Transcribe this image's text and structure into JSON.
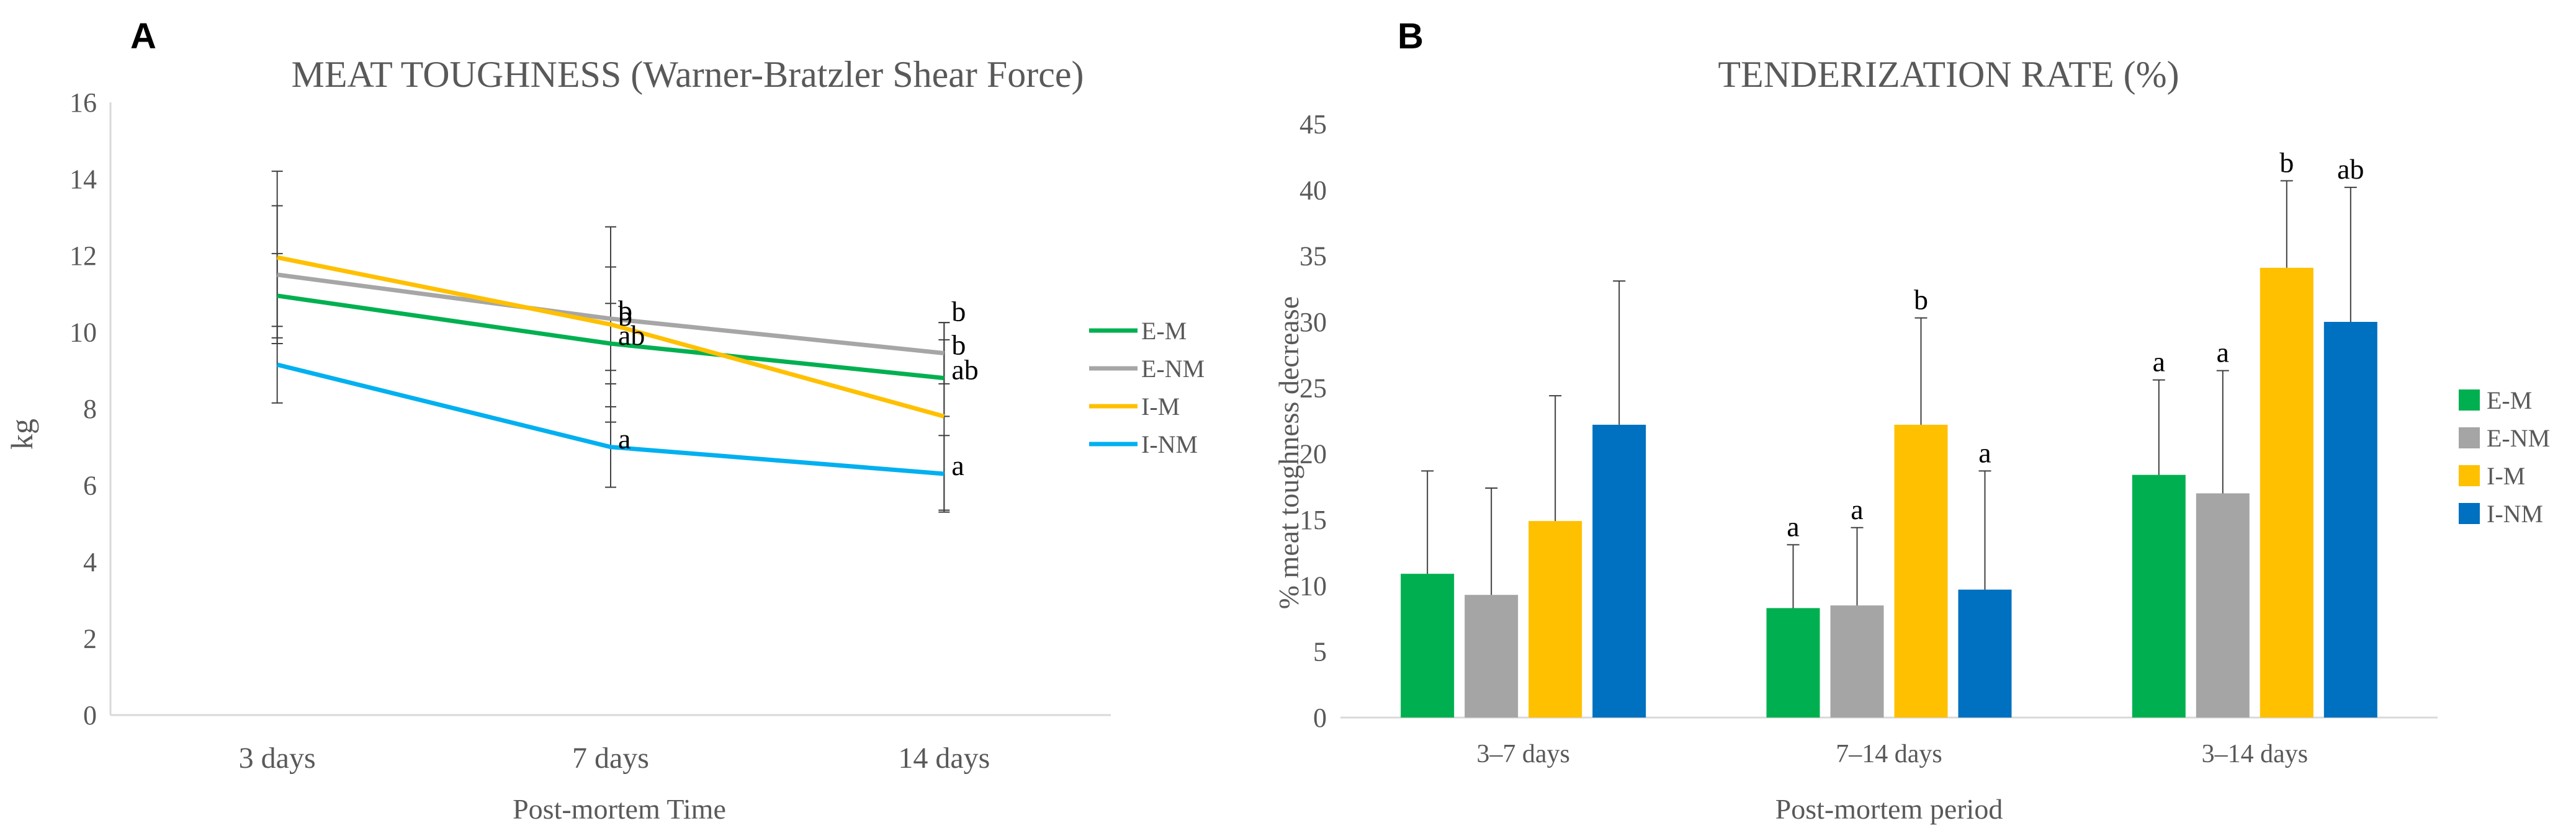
{
  "panels": [
    {
      "letter": "A"
    },
    {
      "letter": "B"
    }
  ],
  "chart_data": [
    {
      "type": "line",
      "title": "MEAT TOUGHNESS  (Warner-Bratzler Shear Force)",
      "xlabel": "Post-mortem Time",
      "ylabel": "kg",
      "categories": [
        "3 days",
        "7 days",
        "14 days"
      ],
      "ylim": [
        0,
        16
      ],
      "yticks": [
        0,
        2,
        4,
        6,
        8,
        10,
        12,
        14,
        16
      ],
      "grid": false,
      "legend_position": "right",
      "series": [
        {
          "name": "E-M",
          "color": "#00B050",
          "values": [
            10.95,
            9.7,
            8.8
          ],
          "err": [
            1.1,
            1.05,
            1.0
          ],
          "labels": [
            "",
            "ab",
            "ab"
          ]
        },
        {
          "name": "E-NM",
          "color": "#A6A6A6",
          "values": [
            11.5,
            10.35,
            9.45
          ],
          "err": [
            1.8,
            1.35,
            0.8
          ],
          "labels": [
            "",
            "b",
            "b"
          ]
        },
        {
          "name": "I-M",
          "color": "#FFC000",
          "values": [
            11.95,
            10.2,
            7.8
          ],
          "err": [
            2.25,
            2.55,
            2.45
          ],
          "labels": [
            "",
            "b",
            ""
          ]
        },
        {
          "name": "I-NM",
          "color": "#00B0F0",
          "values": [
            9.15,
            7.0,
            6.3
          ],
          "err": [
            1.0,
            1.05,
            1.0
          ],
          "labels": [
            "",
            "a",
            "a"
          ]
        }
      ],
      "extra_labels": [
        {
          "category": "14 days",
          "y": 10.55,
          "text": "b"
        }
      ]
    },
    {
      "type": "bar",
      "title": "TENDERIZATION RATE (%)",
      "xlabel": "Post-mortem period",
      "ylabel": "% meat toughness decrease",
      "categories": [
        "3–7 days",
        "7–14 days",
        "3–14 days"
      ],
      "ylim": [
        0,
        45
      ],
      "yticks": [
        0,
        5,
        10,
        15,
        20,
        25,
        30,
        35,
        40,
        45
      ],
      "grid": false,
      "legend_position": "right",
      "series": [
        {
          "name": "E-M",
          "color": "#00B050",
          "values": [
            10.9,
            8.3,
            18.4
          ],
          "err": [
            7.8,
            4.8,
            7.2
          ],
          "labels": [
            "",
            "a",
            "a"
          ]
        },
        {
          "name": "E-NM",
          "color": "#A5A5A5",
          "values": [
            9.3,
            8.5,
            17.0
          ],
          "err": [
            8.1,
            5.9,
            9.3
          ],
          "labels": [
            "",
            "a",
            "a"
          ]
        },
        {
          "name": "I-M",
          "color": "#FFC000",
          "values": [
            14.9,
            22.2,
            34.1
          ],
          "err": [
            9.5,
            8.1,
            6.6
          ],
          "labels": [
            "",
            "b",
            "b"
          ]
        },
        {
          "name": "I-NM",
          "color": "#0070C0",
          "values": [
            22.2,
            9.7,
            30.0
          ],
          "err": [
            10.9,
            9.0,
            10.2
          ],
          "labels": [
            "",
            "a",
            "ab"
          ]
        }
      ]
    }
  ]
}
